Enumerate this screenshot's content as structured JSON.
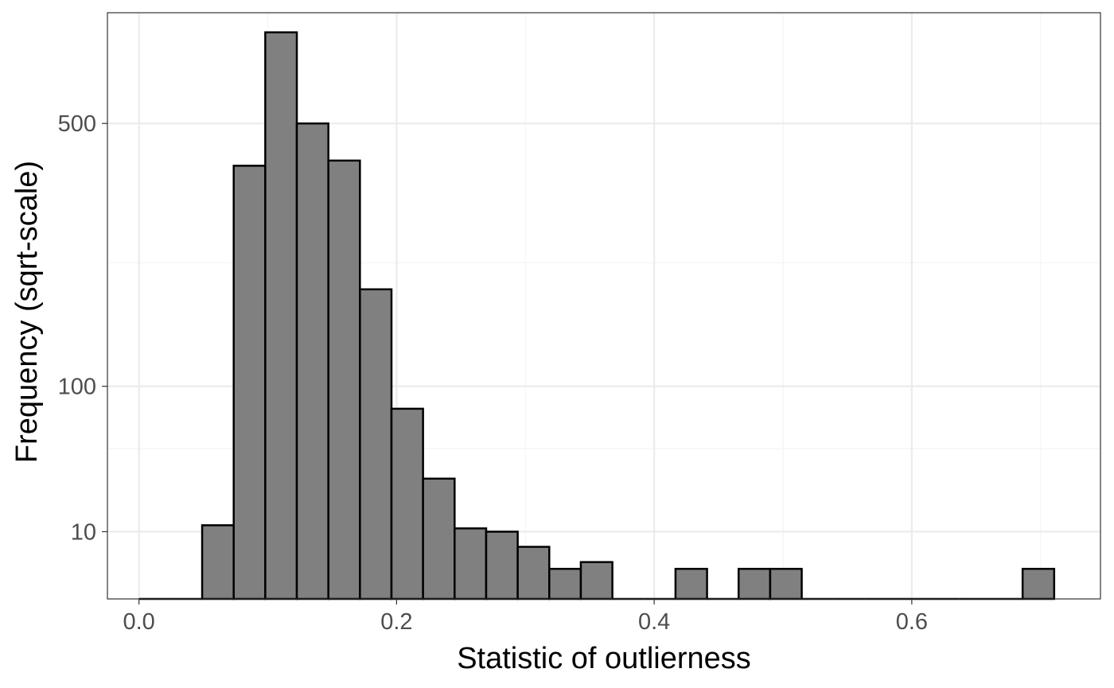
{
  "chart_data": {
    "type": "bar",
    "title": "",
    "xlabel": "Statistic of outlierness",
    "ylabel": "Frequency (sqrt-scale)",
    "y_scale": "sqrt",
    "grid": true,
    "legend": "none",
    "xlim": [
      -0.0245,
      0.7465
    ],
    "ylim": [
      0,
      760
    ],
    "x_ticks": [
      0.0,
      0.2,
      0.4,
      0.6
    ],
    "x_tick_labels": [
      "0.0",
      "0.2",
      "0.4",
      "0.6"
    ],
    "y_ticks": [
      10,
      100,
      500
    ],
    "y_tick_labels": [
      "10",
      "100",
      "500"
    ],
    "y_minor_ticks": [
      0,
      50,
      250
    ],
    "bin_width": 0.0245,
    "bins": [
      {
        "x": 0.0123,
        "count": 0
      },
      {
        "x": 0.0368,
        "count": 0
      },
      {
        "x": 0.0613,
        "count": 12
      },
      {
        "x": 0.0858,
        "count": 415
      },
      {
        "x": 0.1103,
        "count": 710
      },
      {
        "x": 0.1348,
        "count": 500
      },
      {
        "x": 0.1593,
        "count": 425
      },
      {
        "x": 0.1838,
        "count": 212
      },
      {
        "x": 0.2083,
        "count": 80
      },
      {
        "x": 0.2328,
        "count": 32
      },
      {
        "x": 0.2573,
        "count": 11
      },
      {
        "x": 0.2818,
        "count": 10
      },
      {
        "x": 0.3063,
        "count": 6
      },
      {
        "x": 0.3308,
        "count": 2
      },
      {
        "x": 0.3553,
        "count": 3
      },
      {
        "x": 0.3798,
        "count": 0
      },
      {
        "x": 0.4043,
        "count": 0
      },
      {
        "x": 0.4288,
        "count": 2
      },
      {
        "x": 0.4533,
        "count": 0
      },
      {
        "x": 0.4778,
        "count": 2
      },
      {
        "x": 0.5023,
        "count": 2
      },
      {
        "x": 0.5268,
        "count": 0
      },
      {
        "x": 0.5513,
        "count": 0
      },
      {
        "x": 0.5758,
        "count": 0
      },
      {
        "x": 0.6003,
        "count": 0
      },
      {
        "x": 0.6248,
        "count": 0
      },
      {
        "x": 0.6493,
        "count": 0
      },
      {
        "x": 0.6738,
        "count": 0
      },
      {
        "x": 0.6983,
        "count": 2
      }
    ],
    "colors": {
      "bar_fill": "#808080",
      "bar_stroke": "#000000",
      "grid_major": "#ebebeb",
      "grid_minor": "#f4f4f4",
      "panel_border": "#333333",
      "tick_text": "#4d4d4d"
    }
  }
}
